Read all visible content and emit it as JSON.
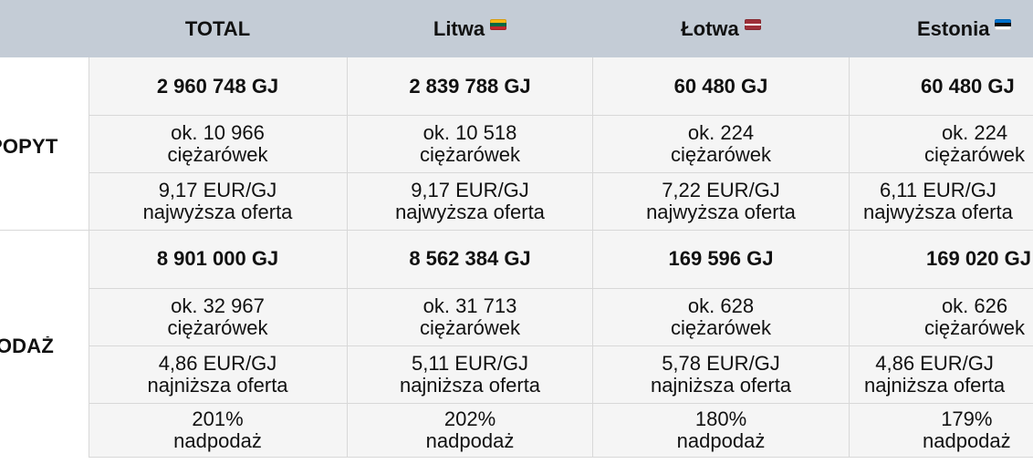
{
  "header": {
    "columns": [
      {
        "label": "TOTAL",
        "flag": ""
      },
      {
        "label": "Litwa",
        "flag": "flag-lithuania-icon"
      },
      {
        "label": "Łotwa",
        "flag": "flag-latvia-icon"
      },
      {
        "label": "Estonia",
        "flag": "flag-estonia-icon"
      }
    ]
  },
  "sections": {
    "popyt": {
      "label": "POPYT",
      "rows": {
        "gj": [
          "2 960 748 GJ",
          "2 839 788 GJ",
          "60 480 GJ",
          "60 480 GJ"
        ],
        "trucks_value": [
          "ok. 10 966",
          "ok. 10 518",
          "ok. 224",
          "ok. 224"
        ],
        "trucks_label": [
          "ciężarówek",
          "ciężarówek",
          "ciężarówek",
          "ciężarówek"
        ],
        "price_value": [
          "9,17 EUR/GJ",
          "9,17 EUR/GJ",
          "7,22 EUR/GJ",
          "6,11 EUR/GJ"
        ],
        "price_label": [
          "najwyższa oferta",
          "najwyższa oferta",
          "najwyższa oferta",
          "najwyższa oferta"
        ]
      }
    },
    "podaz": {
      "label": "PODAŻ",
      "rows": {
        "gj": [
          "8 901 000 GJ",
          "8 562 384 GJ",
          "169 596 GJ",
          "169 020 GJ"
        ],
        "trucks_value": [
          "ok. 32 967",
          "ok. 31 713",
          "ok. 628",
          "ok. 626"
        ],
        "trucks_label": [
          "ciężarówek",
          "ciężarówek",
          "ciężarówek",
          "ciężarówek"
        ],
        "price_value": [
          "4,86 EUR/GJ",
          "5,11 EUR/GJ",
          "5,78 EUR/GJ",
          "4,86 EUR/GJ"
        ],
        "price_label": [
          "najniższa oferta",
          "najniższa oferta",
          "najniższa oferta",
          "najniższa oferta"
        ],
        "surplus_value": [
          "201%",
          "202%",
          "180%",
          "179%"
        ],
        "surplus_label": [
          "nadpodaż",
          "nadpodaż",
          "nadpodaż",
          "nadpodaż"
        ]
      }
    }
  },
  "colors": {
    "header_bg": "#c4ccd6",
    "grid": "#d8d8d8",
    "cell_bg": "#f5f5f5",
    "text": "#111111"
  }
}
